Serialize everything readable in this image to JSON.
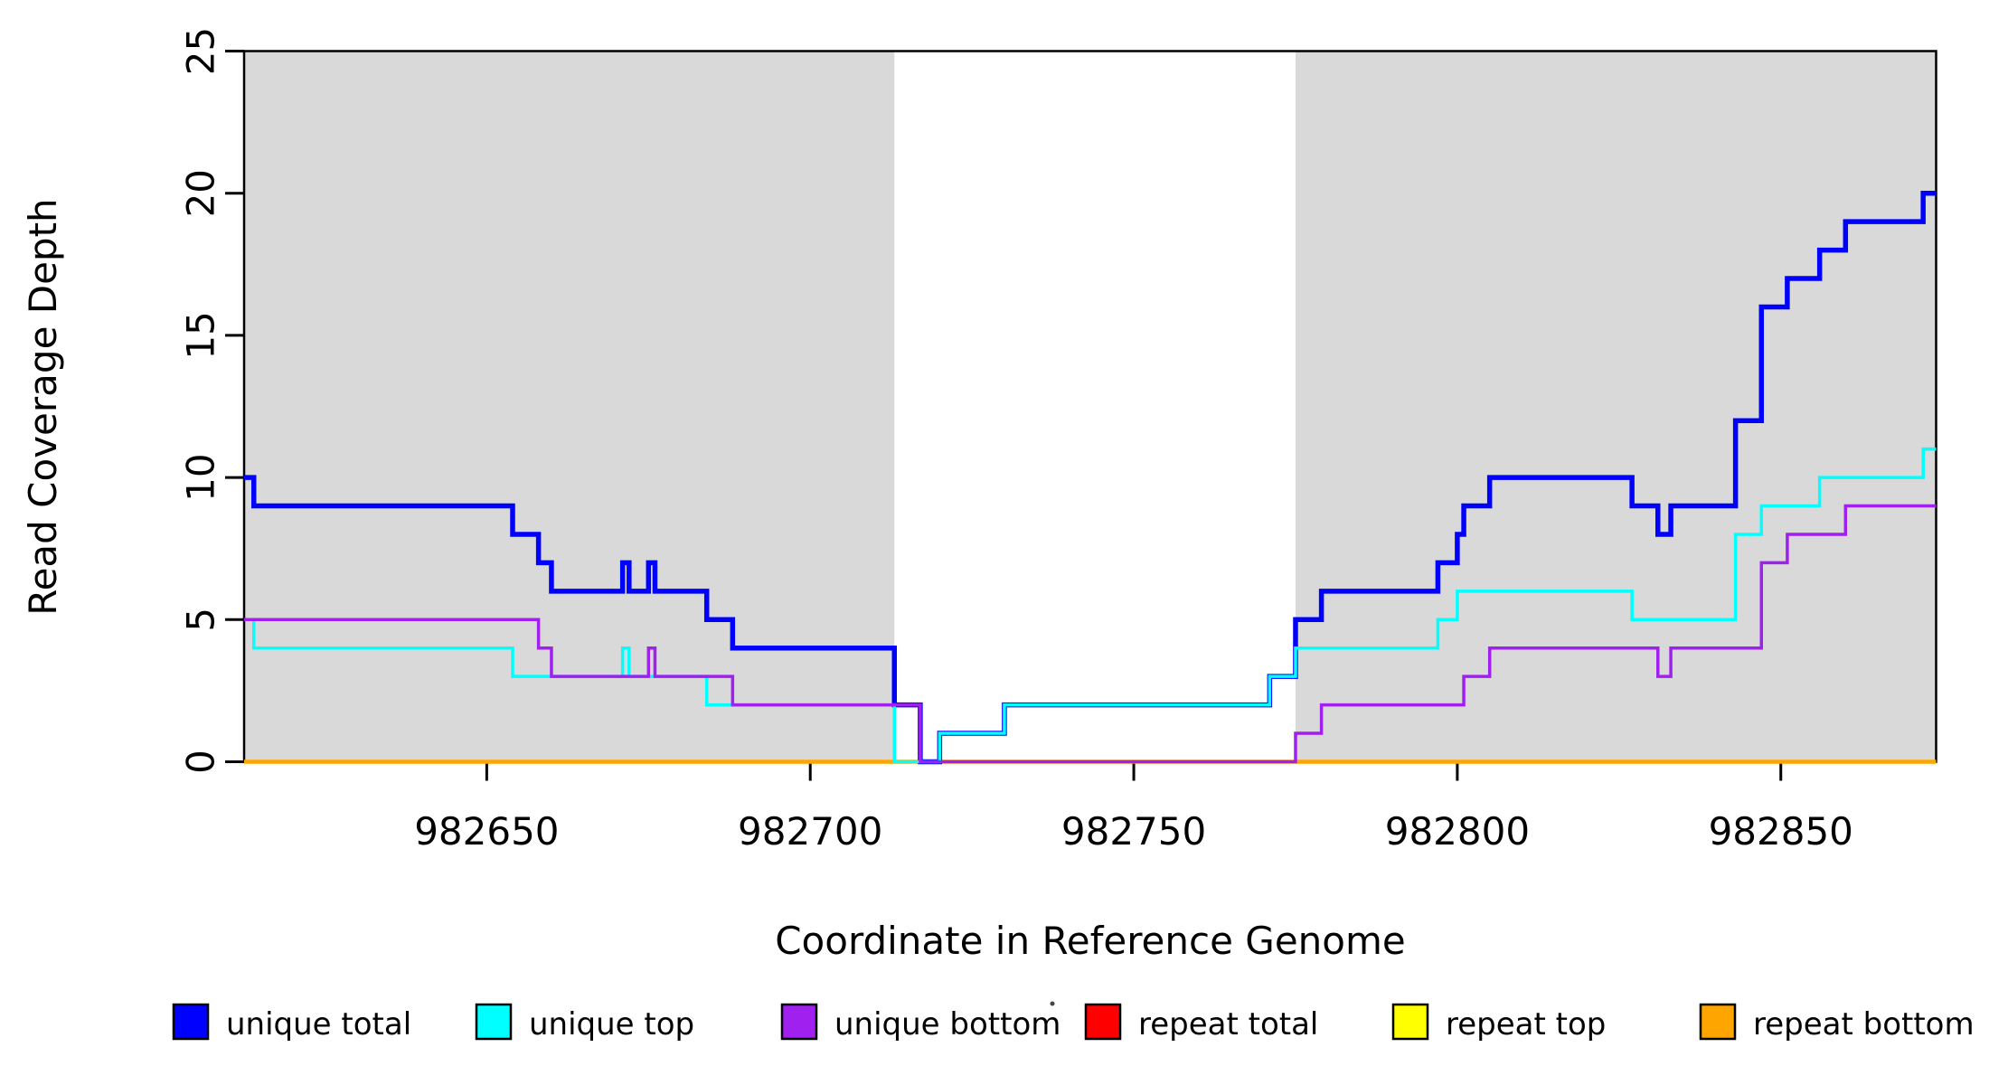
{
  "chart_data": {
    "type": "line",
    "subtype": "step",
    "title": "",
    "xlabel": "Coordinate in Reference Genome",
    "ylabel": "Read Coverage Depth",
    "xlim": [
      982612.5,
      982874
    ],
    "ylim": [
      0,
      25
    ],
    "xticks": [
      982650,
      982700,
      982750,
      982800,
      982850
    ],
    "yticks": [
      0,
      5,
      10,
      15,
      20,
      25
    ],
    "grid": false,
    "legend_position": "bottom",
    "axis_color": "#000000",
    "plot_background": "#FFFFFF",
    "shaded_regions": [
      {
        "x0": 982612.5,
        "x1": 982713,
        "color": "#D9D9D9"
      },
      {
        "x0": 982775,
        "x1": 982874,
        "color": "#D9D9D9"
      }
    ],
    "draw_order": [
      "repeat total",
      "repeat top",
      "repeat bottom",
      "unique total",
      "unique top",
      "unique bottom"
    ],
    "series": [
      {
        "name": "unique total",
        "color": "#0000FF",
        "line_width": 5.5,
        "steps": [
          [
            982612.5,
            10
          ],
          [
            982614,
            9
          ],
          [
            982654,
            8
          ],
          [
            982658,
            7
          ],
          [
            982660,
            6
          ],
          [
            982671,
            7
          ],
          [
            982672,
            6
          ],
          [
            982675,
            7
          ],
          [
            982676,
            6
          ],
          [
            982684,
            5
          ],
          [
            982688,
            4
          ],
          [
            982713,
            2
          ],
          [
            982717,
            0
          ],
          [
            982720,
            1
          ],
          [
            982730,
            2
          ],
          [
            982771,
            3
          ],
          [
            982775,
            5
          ],
          [
            982779,
            6
          ],
          [
            982797,
            7
          ],
          [
            982800,
            8
          ],
          [
            982801,
            9
          ],
          [
            982805,
            10
          ],
          [
            982827,
            9
          ],
          [
            982831,
            8
          ],
          [
            982833,
            9
          ],
          [
            982843,
            12
          ],
          [
            982847,
            16
          ],
          [
            982851,
            17
          ],
          [
            982856,
            18
          ],
          [
            982860,
            19
          ],
          [
            982872,
            20
          ]
        ]
      },
      {
        "name": "unique top",
        "color": "#00FFFF",
        "line_width": 3.5,
        "steps": [
          [
            982612.5,
            5
          ],
          [
            982614,
            4
          ],
          [
            982654,
            3
          ],
          [
            982671,
            4
          ],
          [
            982672,
            3
          ],
          [
            982684,
            2
          ],
          [
            982713,
            0
          ],
          [
            982720,
            1
          ],
          [
            982730,
            2
          ],
          [
            982771,
            3
          ],
          [
            982775,
            4
          ],
          [
            982797,
            5
          ],
          [
            982800,
            6
          ],
          [
            982827,
            5
          ],
          [
            982843,
            8
          ],
          [
            982847,
            9
          ],
          [
            982856,
            10
          ],
          [
            982872,
            11
          ]
        ]
      },
      {
        "name": "unique bottom",
        "color": "#A020F0",
        "line_width": 3.5,
        "steps": [
          [
            982612.5,
            5
          ],
          [
            982658,
            4
          ],
          [
            982660,
            3
          ],
          [
            982675,
            4
          ],
          [
            982676,
            3
          ],
          [
            982688,
            2
          ],
          [
            982717,
            0
          ],
          [
            982775,
            1
          ],
          [
            982779,
            2
          ],
          [
            982801,
            3
          ],
          [
            982805,
            4
          ],
          [
            982831,
            3
          ],
          [
            982833,
            4
          ],
          [
            982847,
            7
          ],
          [
            982851,
            8
          ],
          [
            982860,
            9
          ]
        ]
      },
      {
        "name": "repeat total",
        "color": "#FF0000",
        "line_width": 3,
        "steps": [
          [
            982612.5,
            0
          ]
        ]
      },
      {
        "name": "repeat top",
        "color": "#FFFF00",
        "line_width": 3,
        "steps": [
          [
            982612.5,
            0
          ]
        ]
      },
      {
        "name": "repeat bottom",
        "color": "#FFA500",
        "line_width": 4.5,
        "steps": [
          [
            982612.5,
            0
          ]
        ]
      }
    ]
  },
  "legend": {
    "items": [
      {
        "label": "unique total",
        "color": "#0000FF"
      },
      {
        "label": "unique top",
        "color": "#00FFFF"
      },
      {
        "label": "unique bottom",
        "color": "#A020F0"
      },
      {
        "label": "repeat total",
        "color": "#FF0000"
      },
      {
        "label": "repeat top",
        "color": "#FFFF00"
      },
      {
        "label": "repeat bottom",
        "color": "#FFA500"
      }
    ],
    "swatch_border_color": "#000000"
  }
}
